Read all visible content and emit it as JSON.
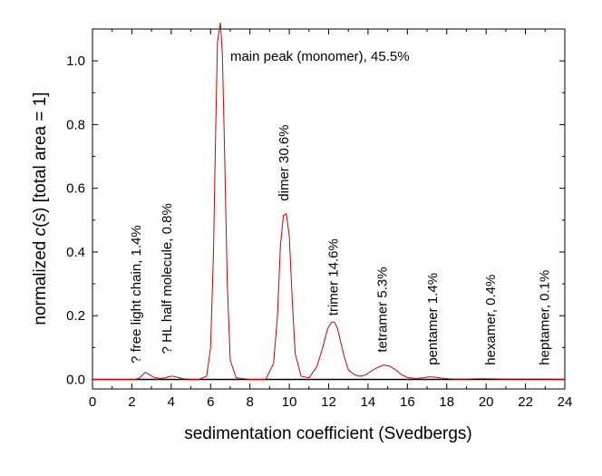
{
  "chart_data": {
    "type": "line",
    "title": "",
    "xlabel": "sedimentation coefficient (Svedbergs)",
    "ylabel": {
      "prefix": "normalized ",
      "italic": "c",
      "middle": "(",
      "italic2": "s",
      "suffix": ") [total area = 1]"
    },
    "xlim": [
      0,
      24
    ],
    "ylim": [
      -0.03,
      1.1
    ],
    "xticks": [
      "0",
      "2",
      "4",
      "6",
      "8",
      "10",
      "12",
      "14",
      "16",
      "18",
      "20",
      "22",
      "24"
    ],
    "yticks": [
      "0.0",
      "0.2",
      "0.4",
      "0.6",
      "0.8",
      "1.0"
    ],
    "grid": false,
    "baseline_y": 0,
    "series_color": "#d40000",
    "baseline_color": "#000000",
    "series": [
      {
        "x": [
          0,
          2.2,
          2.4,
          2.6,
          2.7,
          2.9,
          3.1,
          3.4,
          3.7,
          3.9,
          4.1,
          4.3,
          4.6,
          5.0,
          5.4,
          5.8,
          6.0,
          6.15,
          6.25,
          6.35,
          6.5,
          6.6,
          6.7,
          6.85,
          7.0,
          7.3,
          8.0,
          8.8,
          9.2,
          9.4,
          9.55,
          9.7,
          9.85,
          10.0,
          10.15,
          10.3,
          10.6,
          11.0,
          11.4,
          11.7,
          11.95,
          12.15,
          12.3,
          12.45,
          12.6,
          12.8,
          13.0,
          13.3,
          13.6,
          13.9,
          14.2,
          14.5,
          14.8,
          15.1,
          15.4,
          15.7,
          16.0,
          16.4,
          16.8,
          17.1,
          17.4,
          17.7,
          18.1,
          18.5,
          19.0,
          19.5,
          20.0,
          21.0,
          22.0,
          23.0,
          24.0
        ],
        "y": [
          0,
          0,
          0.005,
          0.018,
          0.022,
          0.015,
          0.007,
          0.003,
          0.005,
          0.009,
          0.01,
          0.007,
          0.002,
          0,
          0,
          0.01,
          0.1,
          0.4,
          0.75,
          1.06,
          1.12,
          1.02,
          0.75,
          0.3,
          0.06,
          0.005,
          0,
          0,
          0.05,
          0.2,
          0.42,
          0.515,
          0.52,
          0.45,
          0.25,
          0.08,
          0.01,
          0.005,
          0.04,
          0.1,
          0.16,
          0.18,
          0.18,
          0.16,
          0.12,
          0.07,
          0.03,
          0.015,
          0.01,
          0.015,
          0.028,
          0.038,
          0.045,
          0.042,
          0.03,
          0.015,
          0.006,
          0.003,
          0.005,
          0.008,
          0.007,
          0.004,
          0.002,
          0.001,
          0.001,
          0.002,
          0.002,
          0.001,
          0.001,
          0.001,
          0
        ]
      }
    ],
    "annotations": [
      {
        "text": "main peak (monomer), 45.5%",
        "x": 7.0,
        "y": 1.0,
        "rotate": 0
      },
      {
        "text": "dimer 30.6%",
        "x": 9.95,
        "y": 0.56,
        "rotate": -90
      },
      {
        "text": "trimer 14.6%",
        "x": 12.45,
        "y": 0.2,
        "rotate": -90
      },
      {
        "text": "tetramer 5.3%",
        "x": 14.95,
        "y": 0.085,
        "rotate": -90
      },
      {
        "text": "pentamer 1.4%",
        "x": 17.5,
        "y": 0.045,
        "rotate": -90
      },
      {
        "text": "hexamer, 0.4%",
        "x": 20.45,
        "y": 0.045,
        "rotate": -90
      },
      {
        "text": "heptamer, 0.1%",
        "x": 23.2,
        "y": 0.045,
        "rotate": -90
      },
      {
        "text": "? free light chain, 1.4%",
        "x": 2.45,
        "y": 0.05,
        "rotate": -90
      },
      {
        "text": "? HL half molecule, 0.8%",
        "x": 4.0,
        "y": 0.08,
        "rotate": -90
      }
    ]
  }
}
